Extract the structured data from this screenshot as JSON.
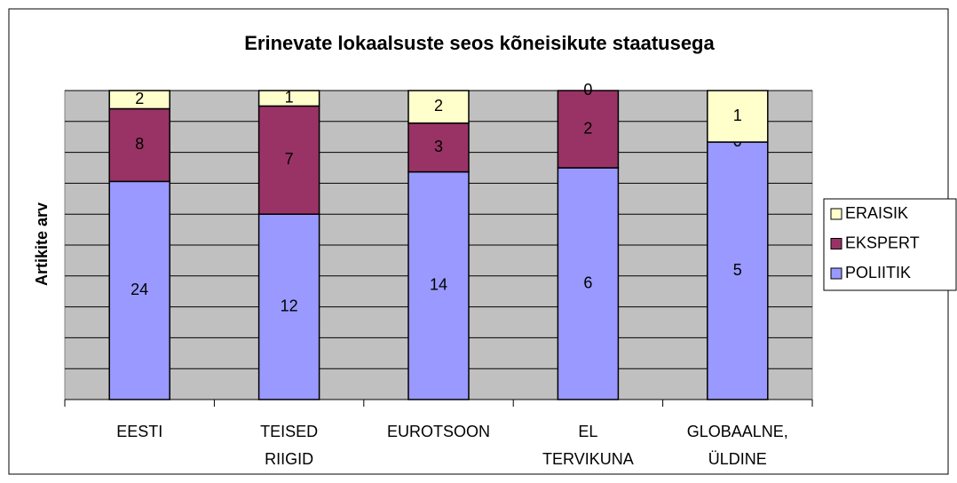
{
  "chart_data": {
    "type": "bar",
    "stacked": "percent",
    "title": "Erinevate lokaalsuste seos kõneisikute staatusega",
    "y_label": "Artikite arv",
    "categories": [
      "EESTI",
      "TEISED RIIGID",
      "EUROTSOON",
      "EL TERVIKUNA",
      "GLOBAALNE, ÜLDINE"
    ],
    "series": [
      {
        "name": "POLIITIK",
        "color": "#9999ff",
        "values": [
          24,
          12,
          14,
          6,
          5
        ]
      },
      {
        "name": "EKSPERT",
        "color": "#993366",
        "values": [
          8,
          7,
          3,
          2,
          0
        ]
      },
      {
        "name": "ERAISIK",
        "color": "#ffffcc",
        "values": [
          2,
          1,
          2,
          0,
          1
        ]
      }
    ],
    "grid": true,
    "plot_background": "#c0c0c0",
    "legend": "right"
  }
}
